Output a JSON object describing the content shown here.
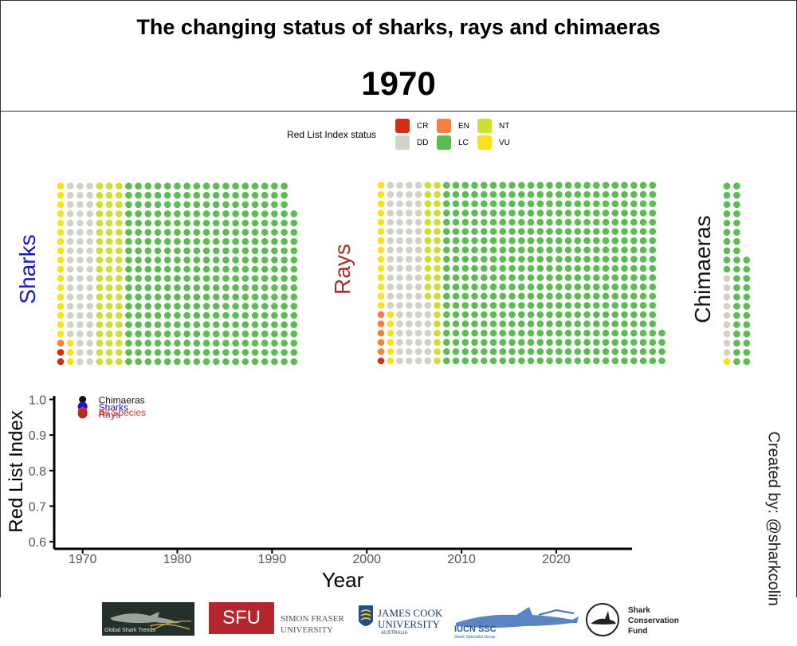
{
  "header": {
    "title": "The changing status of sharks, rays and chimaeras",
    "year": "1970"
  },
  "legend": {
    "title": "Red List Index status",
    "items": [
      {
        "code": "CR",
        "color": "#d62d12"
      },
      {
        "code": "EN",
        "color": "#f5813f"
      },
      {
        "code": "NT",
        "color": "#cde02f"
      },
      {
        "code": "DD",
        "color": "#d2d1c6"
      },
      {
        "code": "LC",
        "color": "#5cbc52"
      },
      {
        "code": "VU",
        "color": "#f9e21a"
      }
    ]
  },
  "groups": [
    {
      "name": "Sharks",
      "label_color": "#1a17c9",
      "columns": [
        {
          "CR": 2,
          "EN": 1,
          "VU": 17
        },
        {
          "VU": 3,
          "DD": 17
        },
        {
          "DD": 20
        },
        {
          "DD": 20
        },
        {
          "NT": 20
        },
        {
          "NT": 20
        },
        {
          "NT": 20
        },
        {
          "LC": 20
        },
        {
          "LC": 20
        },
        {
          "LC": 20
        },
        {
          "LC": 20
        },
        {
          "LC": 20
        },
        {
          "LC": 20
        },
        {
          "LC": 20
        },
        {
          "LC": 20
        },
        {
          "LC": 20
        },
        {
          "LC": 20
        },
        {
          "LC": 20
        },
        {
          "LC": 20
        },
        {
          "LC": 20
        },
        {
          "LC": 20
        },
        {
          "LC": 20
        },
        {
          "LC": 20
        },
        {
          "LC": 20
        },
        {
          "LC": 17
        }
      ]
    },
    {
      "name": "Rays",
      "label_color": "#b02a2a",
      "columns": [
        {
          "CR": 1,
          "EN": 5,
          "VU": 14
        },
        {
          "VU": 6,
          "DD": 14
        },
        {
          "DD": 20
        },
        {
          "DD": 20
        },
        {
          "DD": 20
        },
        {
          "DD": 7,
          "NT": 13
        },
        {
          "NT": 20
        },
        {
          "LC": 20
        },
        {
          "LC": 20
        },
        {
          "LC": 20
        },
        {
          "LC": 20
        },
        {
          "LC": 20
        },
        {
          "LC": 20
        },
        {
          "LC": 20
        },
        {
          "LC": 20
        },
        {
          "LC": 20
        },
        {
          "LC": 20
        },
        {
          "LC": 20
        },
        {
          "LC": 20
        },
        {
          "LC": 20
        },
        {
          "LC": 20
        },
        {
          "LC": 20
        },
        {
          "LC": 20
        },
        {
          "LC": 20
        },
        {
          "LC": 20
        },
        {
          "LC": 20
        },
        {
          "LC": 20
        },
        {
          "LC": 20
        },
        {
          "LC": 20
        },
        {
          "LC": 20
        },
        {
          "LC": 4
        }
      ]
    },
    {
      "name": "Chimaeras",
      "label_color": "#111111",
      "columns": [
        {
          "DD": 9,
          "VU": 1,
          "LC": 10
        },
        {
          "LC": 20
        },
        {
          "LC": 12
        }
      ]
    }
  ],
  "chart_data": {
    "type": "line",
    "title": "",
    "xlabel": "Year",
    "ylabel": "Red List Index",
    "xlim": [
      1967,
      2028
    ],
    "ylim": [
      0.58,
      1.01
    ],
    "x_ticks": [
      "1970",
      "1980",
      "1990",
      "2000",
      "2010",
      "2020"
    ],
    "y_ticks": [
      "0.6",
      "0.7",
      "0.8",
      "0.9",
      "1.0"
    ],
    "series": [
      {
        "name": "Chimaeras",
        "color": "#111111",
        "x": [
          1970
        ],
        "y": [
          1.0
        ]
      },
      {
        "name": "Sharks",
        "color": "#1a17c9",
        "x": [
          1970
        ],
        "y": [
          0.98
        ]
      },
      {
        "name": "All Species",
        "color": "#e0383c",
        "x": [
          1970
        ],
        "y": [
          0.965
        ]
      },
      {
        "name": "Rays",
        "color": "#b02a2a",
        "x": [
          1970
        ],
        "y": [
          0.96
        ]
      }
    ]
  },
  "credit": "Created by: @sharkcolin",
  "logos": {
    "gst": "Global Shark Trends",
    "sfu": "SFU",
    "sfu_full_1": "SIMON FRASER",
    "sfu_full_2": "UNIVERSITY",
    "jcu_1": "JAMES COOK",
    "jcu_2": "UNIVERSITY",
    "jcu_3": "AUSTRALIA",
    "iucn_1": "IUCN SSC",
    "iucn_2": "Shark Specialist Group",
    "scf_1": "Shark",
    "scf_2": "Conservation",
    "scf_3": "Fund"
  }
}
